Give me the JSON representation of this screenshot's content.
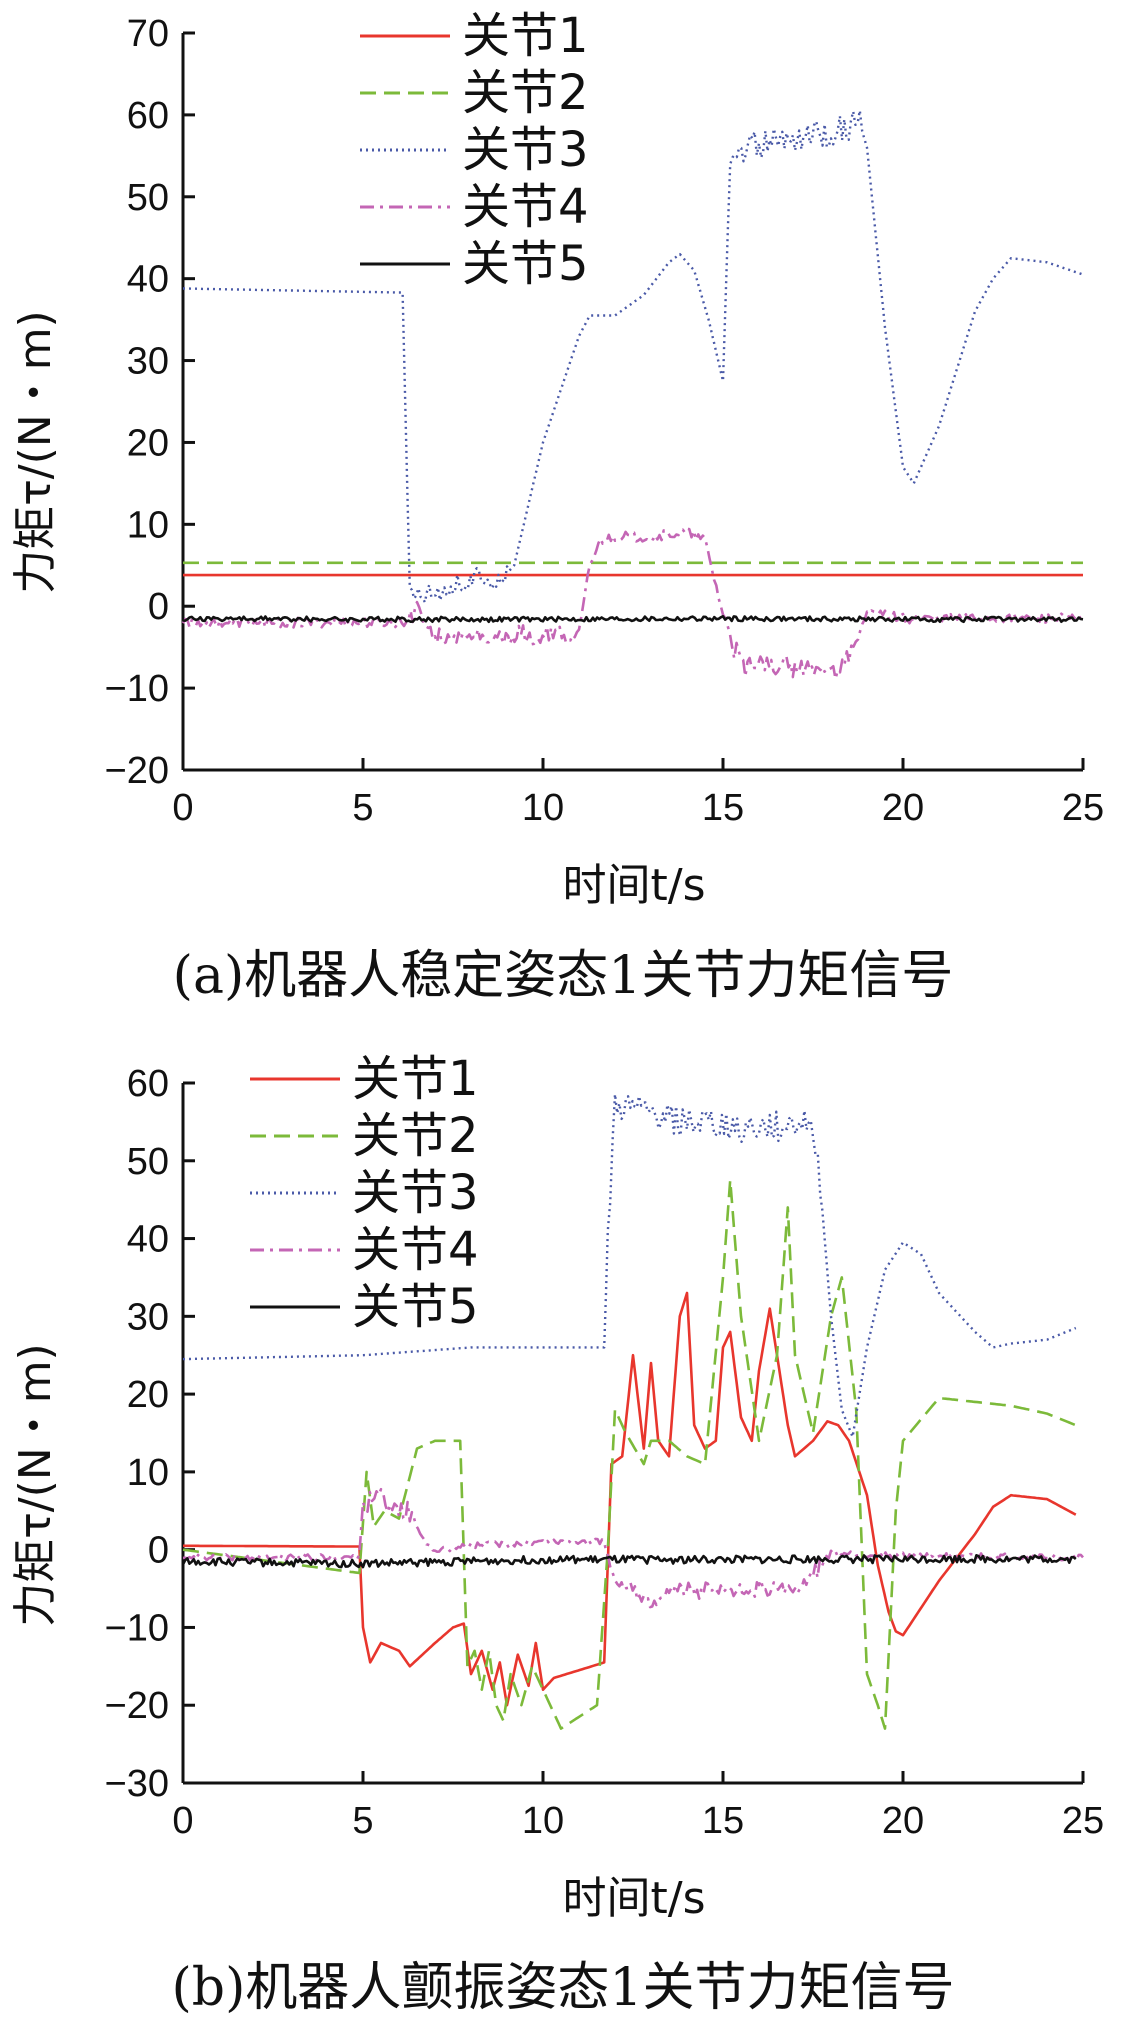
{
  "chart_data": [
    {
      "type": "line",
      "caption": "(a)机器人稳定姿态1关节力矩信号",
      "xlabel": "时间t/s",
      "ylabel": "力矩τ/(N・m)",
      "xlim": [
        0,
        25
      ],
      "ylim": [
        -20,
        70
      ],
      "xticks": [
        0,
        5,
        10,
        15,
        20,
        25
      ],
      "yticks": [
        -20,
        -10,
        0,
        10,
        20,
        30,
        40,
        50,
        60,
        70
      ],
      "ytick_labels": [
        "−20",
        "−10",
        "0",
        "10",
        "20",
        "30",
        "40",
        "50",
        "60",
        "70"
      ],
      "grid": false,
      "legend_position": "top-center",
      "series": [
        {
          "name": "关节1",
          "color": "#e8362d",
          "style": "solid",
          "x": [
            0,
            25
          ],
          "y": [
            3.8,
            3.8
          ]
        },
        {
          "name": "关节2",
          "color": "#7cba3a",
          "style": "dashed",
          "x": [
            0,
            25
          ],
          "y": [
            5.3,
            5.3
          ]
        },
        {
          "name": "关节3",
          "color": "#4a5aa8",
          "style": "dotted",
          "noise_ranges": [
            [
              6.3,
              9.0,
              1.5
            ],
            [
              15.2,
              18.8,
              1.8
            ]
          ],
          "x": [
            0,
            6.1,
            6.3,
            7.5,
            9.0,
            9.2,
            10.0,
            11.0,
            11.3,
            12.0,
            12.8,
            13.5,
            13.8,
            14.2,
            14.6,
            15.0,
            15.2,
            16.0,
            17.0,
            18.0,
            18.8,
            19.0,
            19.5,
            20.0,
            20.3,
            21.0,
            22.0,
            22.5,
            23.0,
            24.0,
            25.0
          ],
          "y": [
            38.8,
            38.3,
            1.5,
            2.5,
            4.0,
            5.0,
            20.0,
            33.0,
            35.5,
            35.5,
            38.0,
            42.0,
            43.0,
            41.0,
            35.0,
            27.5,
            55.0,
            56.5,
            57.0,
            58.0,
            59.0,
            56.0,
            34.0,
            17.0,
            15.0,
            22.0,
            36.0,
            40.0,
            42.5,
            42.0,
            40.5
          ]
        },
        {
          "name": "关节4",
          "color": "#c466b5",
          "style": "dashdot",
          "noise_ranges": [
            [
              0,
              25,
              0.6
            ],
            [
              6.3,
              11.0,
              1.0
            ],
            [
              15.2,
              18.5,
              1.2
            ]
          ],
          "x": [
            0,
            6.2,
            6.5,
            7.0,
            11.0,
            11.3,
            11.6,
            12.0,
            13.0,
            14.0,
            14.5,
            15.0,
            15.5,
            17.0,
            18.0,
            18.5,
            19.0,
            19.5,
            20.0,
            25.0
          ],
          "y": [
            -2.0,
            -2.0,
            0.0,
            -4.0,
            -3.5,
            5.0,
            8.0,
            8.5,
            8.5,
            9.0,
            8.0,
            -1.0,
            -7.0,
            -7.5,
            -8.0,
            -6.0,
            -1.0,
            -1.0,
            -1.5,
            -1.5
          ]
        },
        {
          "name": "关节5",
          "color": "#111111",
          "style": "solid",
          "noise_ranges": [
            [
              0,
              25,
              0.3
            ]
          ],
          "x": [
            0,
            5,
            10,
            15,
            20,
            25
          ],
          "y": [
            -1.5,
            -1.6,
            -1.6,
            -1.5,
            -1.6,
            -1.6
          ]
        }
      ]
    },
    {
      "type": "line",
      "caption": "(b)机器人颤振姿态1关节力矩信号",
      "xlabel": "时间t/s",
      "ylabel": "力矩τ/(N・m)",
      "xlim": [
        0,
        25
      ],
      "ylim": [
        -30,
        60
      ],
      "xticks": [
        0,
        5,
        10,
        15,
        20,
        25
      ],
      "yticks": [
        -30,
        -20,
        -10,
        0,
        10,
        20,
        30,
        40,
        50,
        60
      ],
      "ytick_labels": [
        "−30",
        "−20",
        "−10",
        "0",
        "10",
        "20",
        "30",
        "40",
        "50",
        "60"
      ],
      "grid": false,
      "legend_position": "top-left",
      "series": [
        {
          "name": "关节1",
          "color": "#e8362d",
          "style": "solid",
          "x": [
            0,
            4.9,
            5.0,
            5.2,
            5.5,
            6.0,
            6.3,
            7.0,
            7.5,
            7.8,
            8.0,
            8.3,
            8.6,
            8.8,
            9.0,
            9.3,
            9.6,
            9.8,
            10.0,
            10.3,
            11.7,
            11.9,
            12.2,
            12.5,
            12.8,
            13.0,
            13.2,
            13.5,
            13.8,
            14.0,
            14.2,
            14.5,
            14.8,
            15.0,
            15.2,
            15.5,
            15.8,
            16.0,
            16.3,
            16.5,
            16.8,
            17.0,
            17.5,
            17.9,
            18.2,
            18.5,
            19.0,
            19.3,
            19.6,
            19.8,
            20.0,
            21.0,
            22.0,
            22.5,
            23.0,
            24.0,
            24.8
          ],
          "y": [
            0.5,
            0.4,
            -10.0,
            -14.5,
            -12.0,
            -13.0,
            -15.0,
            -12.0,
            -10.0,
            -9.5,
            -16.0,
            -13.0,
            -18.0,
            -14.5,
            -20.0,
            -13.5,
            -17.5,
            -12.0,
            -18.0,
            -16.5,
            -14.5,
            11.0,
            12.0,
            25.0,
            13.0,
            24.0,
            14.0,
            12.0,
            30.0,
            33.0,
            16.0,
            13.0,
            14.0,
            26.0,
            28.0,
            17.0,
            14.0,
            23.0,
            31.0,
            25.0,
            16.0,
            12.0,
            14.0,
            16.5,
            16.0,
            14.0,
            7.0,
            -2.0,
            -8.0,
            -10.5,
            -11.0,
            -4.0,
            2.0,
            5.5,
            7.0,
            6.5,
            4.5
          ]
        },
        {
          "name": "关节2",
          "color": "#7cba3a",
          "style": "dashed",
          "x": [
            0,
            4.9,
            5.1,
            5.3,
            5.6,
            6.0,
            6.5,
            7.0,
            7.4,
            7.7,
            7.9,
            8.1,
            8.3,
            8.5,
            8.7,
            8.9,
            9.1,
            9.4,
            9.7,
            10.0,
            10.5,
            11.5,
            11.8,
            12.0,
            12.3,
            12.8,
            13.0,
            13.5,
            14.0,
            14.5,
            15.0,
            15.2,
            15.5,
            16.0,
            16.5,
            16.8,
            17.0,
            17.5,
            18.0,
            18.3,
            18.7,
            19.0,
            19.3,
            19.5,
            19.8,
            20.0,
            21.0,
            22.0,
            23.0,
            24.0,
            24.8
          ],
          "y": [
            0.0,
            -3.0,
            10.0,
            3.0,
            5.0,
            4.0,
            13.0,
            14.0,
            14.0,
            14.0,
            -15.0,
            -13.0,
            -18.0,
            -13.0,
            -20.0,
            -22.0,
            -16.0,
            -20.0,
            -15.0,
            -18.0,
            -23.0,
            -20.0,
            0.0,
            18.0,
            15.0,
            11.0,
            14.0,
            14.0,
            12.0,
            11.0,
            35.0,
            47.5,
            30.0,
            14.0,
            25.0,
            44.0,
            25.0,
            15.0,
            30.0,
            35.0,
            18.0,
            -16.0,
            -20.0,
            -23.0,
            5.0,
            14.0,
            19.5,
            19.0,
            18.5,
            17.5,
            16.0
          ]
        },
        {
          "name": "关节3",
          "color": "#4a5aa8",
          "style": "dotted",
          "noise_ranges": [
            [
              11.8,
              17.7,
              2.0
            ]
          ],
          "x": [
            0,
            5,
            8,
            10,
            11.0,
            11.7,
            11.8,
            12.0,
            14.0,
            16.0,
            17.5,
            17.7,
            18.0,
            18.3,
            18.6,
            19.0,
            19.5,
            20.0,
            20.5,
            21.0,
            22.0,
            22.5,
            23.0,
            24.0,
            24.8
          ],
          "y": [
            24.5,
            25.0,
            26.0,
            26.0,
            26.0,
            26.0,
            40.0,
            57.0,
            55.0,
            54.0,
            55.0,
            47.0,
            30.0,
            18.0,
            14.5,
            26.0,
            36.0,
            39.5,
            38.0,
            33.0,
            28.0,
            26.0,
            26.5,
            27.0,
            28.5
          ]
        },
        {
          "name": "关节4",
          "color": "#c466b5",
          "style": "dashdot",
          "noise_ranges": [
            [
              0,
              25,
              0.4
            ],
            [
              5.0,
              6.3,
              1.2
            ],
            [
              12.0,
              17.8,
              1.0
            ]
          ],
          "x": [
            0,
            4.9,
            5.0,
            5.5,
            6.0,
            6.3,
            6.7,
            7.0,
            8.0,
            10.0,
            11.7,
            11.8,
            12.0,
            12.8,
            13.5,
            15.0,
            16.0,
            17.0,
            17.5,
            18.0,
            20.0,
            25.0
          ],
          "y": [
            -1.0,
            -1.0,
            6.0,
            6.5,
            5.0,
            5.0,
            1.0,
            0.0,
            0.5,
            1.0,
            1.0,
            -1.0,
            -4.0,
            -7.0,
            -5.0,
            -5.0,
            -5.0,
            -5.5,
            -3.0,
            -0.5,
            -0.8,
            -1.0
          ]
        },
        {
          "name": "关节5",
          "color": "#111111",
          "style": "solid",
          "noise_ranges": [
            [
              0,
              25,
              0.5
            ]
          ],
          "x": [
            0,
            5,
            10,
            15,
            20,
            24.8
          ],
          "y": [
            -1.5,
            -1.8,
            -1.3,
            -1.3,
            -1.2,
            -1.2
          ]
        }
      ]
    }
  ]
}
